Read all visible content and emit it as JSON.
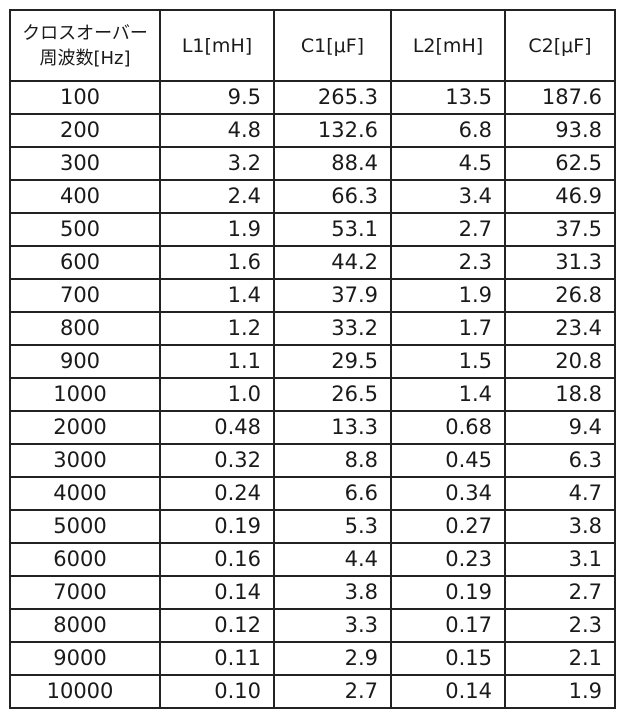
{
  "table": {
    "headers": {
      "frequency_line1": "クロスオーバー",
      "frequency_line2": "周波数[Hz]",
      "l1": "L1[mH]",
      "c1": "C1[μF]",
      "l2": "L2[mH]",
      "c2": "C2[μF]"
    },
    "rows": [
      [
        "100",
        "9.5",
        "265.3",
        "13.5",
        "187.6"
      ],
      [
        "200",
        "4.8",
        "132.6",
        "6.8",
        "93.8"
      ],
      [
        "300",
        "3.2",
        "88.4",
        "4.5",
        "62.5"
      ],
      [
        "400",
        "2.4",
        "66.3",
        "3.4",
        "46.9"
      ],
      [
        "500",
        "1.9",
        "53.1",
        "2.7",
        "37.5"
      ],
      [
        "600",
        "1.6",
        "44.2",
        "2.3",
        "31.3"
      ],
      [
        "700",
        "1.4",
        "37.9",
        "1.9",
        "26.8"
      ],
      [
        "800",
        "1.2",
        "33.2",
        "1.7",
        "23.4"
      ],
      [
        "900",
        "1.1",
        "29.5",
        "1.5",
        "20.8"
      ],
      [
        "1000",
        "1.0",
        "26.5",
        "1.4",
        "18.8"
      ],
      [
        "2000",
        "0.48",
        "13.3",
        "0.68",
        "9.4"
      ],
      [
        "3000",
        "0.32",
        "8.8",
        "0.45",
        "6.3"
      ],
      [
        "4000",
        "0.24",
        "6.6",
        "0.34",
        "4.7"
      ],
      [
        "5000",
        "0.19",
        "5.3",
        "0.27",
        "3.8"
      ],
      [
        "6000",
        "0.16",
        "4.4",
        "0.23",
        "3.1"
      ],
      [
        "7000",
        "0.14",
        "3.8",
        "0.19",
        "2.7"
      ],
      [
        "8000",
        "0.12",
        "3.3",
        "0.17",
        "2.3"
      ],
      [
        "9000",
        "0.11",
        "2.9",
        "0.15",
        "2.1"
      ],
      [
        "10000",
        "0.10",
        "2.7",
        "0.14",
        "1.9"
      ]
    ]
  }
}
